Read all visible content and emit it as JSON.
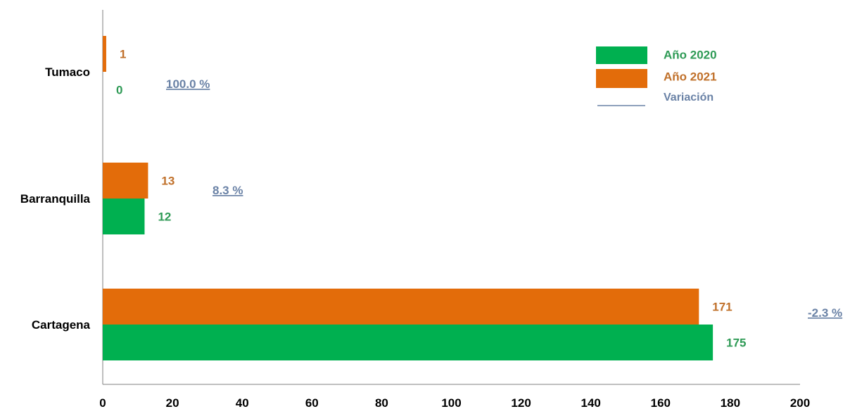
{
  "chart_data": {
    "type": "bar",
    "orientation": "horizontal",
    "categories": [
      "Tumaco",
      "Barranquilla",
      "Cartagena"
    ],
    "series": [
      {
        "name": "Año 2020",
        "color": "#00b050",
        "values": [
          0,
          12,
          175
        ],
        "labels": [
          "0",
          "12",
          "175"
        ]
      },
      {
        "name": "Año 2021",
        "color": "#e36c0a",
        "values": [
          1,
          13,
          171
        ],
        "labels": [
          "1",
          "13",
          "171"
        ]
      }
    ],
    "variation": {
      "name": "Variación",
      "color": "#6a82a6",
      "labels": [
        "100.0 %",
        "8.3 %",
        "-2.3 %"
      ]
    },
    "xlim": [
      0,
      200
    ],
    "x_ticks": [
      "0",
      "20",
      "40",
      "60",
      "80",
      "100",
      "120",
      "140",
      "160",
      "180",
      "200"
    ],
    "legend_position": "top-right",
    "grid": false,
    "title": "",
    "xlabel": "",
    "ylabel": ""
  }
}
